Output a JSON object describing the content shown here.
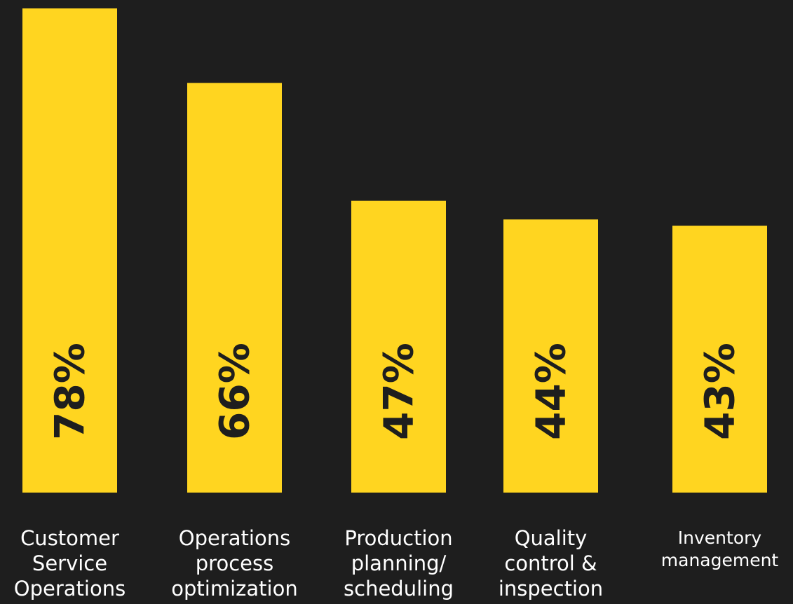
{
  "chart_data": {
    "type": "bar",
    "categories": [
      "Customer\nService\nOperations",
      "Operations\nprocess\noptimization",
      "Production\nplanning/\nscheduling",
      "Quality\ncontrol &\ninspection",
      "Inventory\nmanagement"
    ],
    "values": [
      78,
      66,
      47,
      44,
      43
    ],
    "value_labels": [
      "78%",
      "66%",
      "47%",
      "44%",
      "43%"
    ],
    "color": "#ffd520"
  }
}
